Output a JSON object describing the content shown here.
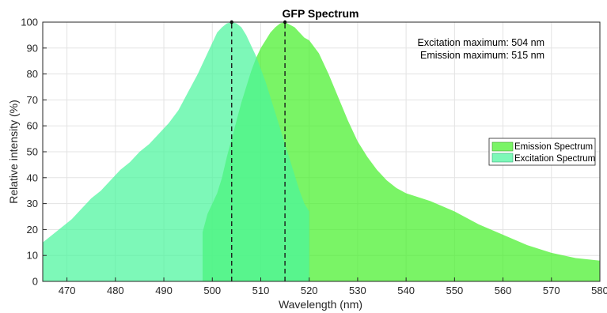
{
  "chart_data": {
    "type": "area",
    "title": "GFP Spectrum",
    "xlabel": "Wavelength (nm)",
    "ylabel": "Relative intensity (%)",
    "xlim": [
      465,
      580
    ],
    "ylim": [
      0,
      100
    ],
    "xticks": [
      470,
      480,
      490,
      500,
      510,
      520,
      530,
      540,
      550,
      560,
      570,
      580
    ],
    "yticks": [
      0,
      10,
      20,
      30,
      40,
      50,
      60,
      70,
      80,
      90,
      100
    ],
    "grid": true,
    "legend_position": "right",
    "annotations": [
      "Excitation maximum: 504 nm",
      "Emission maximum: 515 nm"
    ],
    "peak_markers": [
      504,
      515
    ],
    "series": [
      {
        "name": "Emission Spectrum",
        "color": "#46f02b",
        "x": [
          498,
          499,
          500,
          501,
          502,
          503,
          504,
          505,
          506,
          507,
          508,
          509,
          510,
          511,
          512,
          513,
          514,
          515,
          516,
          517,
          518,
          519,
          520,
          522,
          524,
          526,
          528,
          530,
          532,
          534,
          536,
          538,
          540,
          545,
          550,
          555,
          560,
          565,
          570,
          575,
          580
        ],
        "values": [
          19,
          26,
          30,
          34,
          40,
          48,
          55,
          62,
          69,
          75,
          81,
          86,
          90,
          93,
          96,
          98,
          99.5,
          100,
          99,
          98,
          96,
          94,
          93,
          88,
          80,
          71,
          62,
          54,
          48,
          43,
          39,
          36,
          34,
          31,
          27,
          22,
          18,
          14,
          11,
          9,
          8
        ]
      },
      {
        "name": "Excitation Spectrum",
        "color": "#4bf59c",
        "x": [
          465,
          467,
          469,
          471,
          473,
          475,
          477,
          479,
          481,
          483,
          485,
          487,
          489,
          491,
          493,
          495,
          497,
          499,
          500,
          501,
          502,
          503,
          504,
          505,
          506,
          507,
          508,
          509,
          510,
          511,
          512,
          513,
          514,
          515,
          516,
          517,
          518,
          519,
          520
        ],
        "values": [
          15,
          18,
          21,
          24,
          28,
          32,
          35,
          39,
          43,
          46,
          50,
          53,
          57,
          61,
          66,
          73,
          80,
          88,
          92,
          96,
          98,
          99.5,
          100,
          99.5,
          98,
          95,
          91,
          87,
          82,
          77,
          71,
          65,
          59,
          53,
          47,
          41,
          35,
          30,
          27
        ]
      }
    ]
  }
}
